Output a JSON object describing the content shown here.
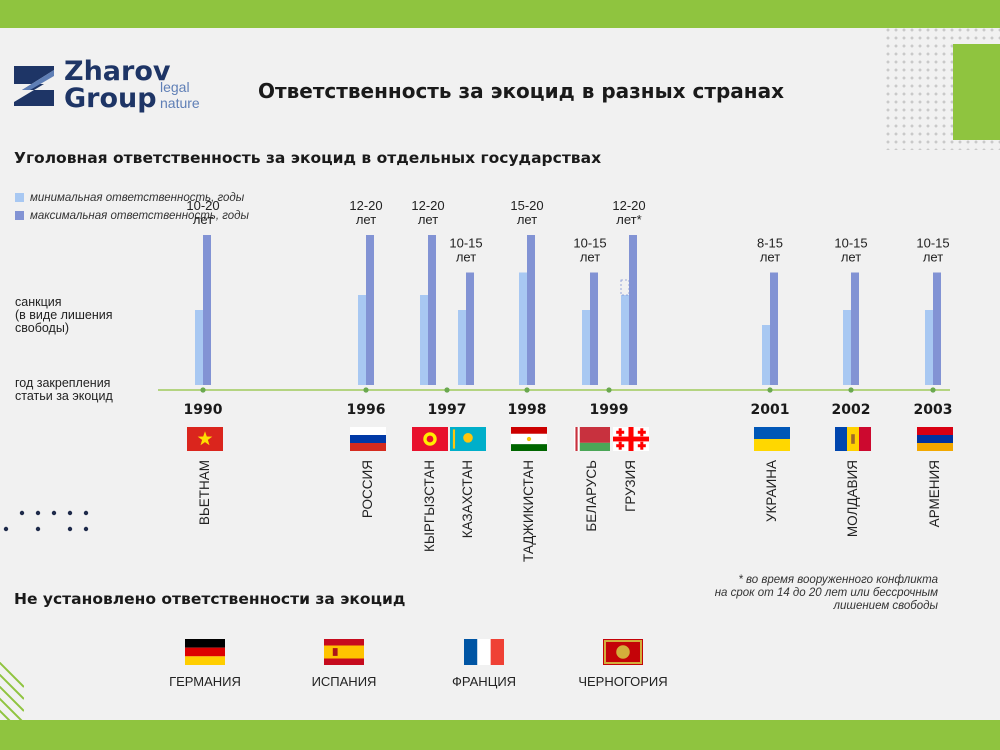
{
  "brand": {
    "line1": "Zharov",
    "line2": "Group",
    "sub1": "legal",
    "sub2": "nature"
  },
  "title": "Ответственность за экоцид в разных странах",
  "subtitle": "Уголовная ответственность за экоцид в отдельных государствах",
  "legend": {
    "min": "минимальная ответственность, годы",
    "max": "максимальная ответственность, годы"
  },
  "row_labels": {
    "sanction": [
      "санкция",
      "(в виде лишения",
      "свободы)"
    ],
    "year": [
      "год закрепления",
      "статьи за экоцид"
    ]
  },
  "colors": {
    "min": "#a8c8f2",
    "max": "#8293d4",
    "accent": "#8fc43f",
    "navy": "#1e3566",
    "timeline": "#8fc43f",
    "dot": "#6aa84f"
  },
  "chart_data": {
    "type": "bar",
    "title": "Уголовная ответственность за экоцид в отдельных государствах",
    "units": "лет",
    "ylim": [
      0,
      20
    ],
    "legend": [
      "минимальная ответственность, годы",
      "максимальная ответственность, годы"
    ],
    "countries": [
      {
        "name": "ВЬЕТНАМ",
        "year": "1990",
        "range": "10-20",
        "unit": "лет",
        "min": 10,
        "max": 20,
        "flag": "vn"
      },
      {
        "name": "РОССИЯ",
        "year": "1996",
        "range": "12-20",
        "unit": "лет",
        "min": 12,
        "max": 20,
        "flag": "ru"
      },
      {
        "name": "КЫРГЫЗСТАН",
        "year": "1997",
        "range": "12-20",
        "unit": "лет",
        "min": 12,
        "max": 20,
        "flag": "kg"
      },
      {
        "name": "КАЗАХСТАН",
        "year": "",
        "range": "10-15",
        "unit": "лет",
        "min": 10,
        "max": 15,
        "flag": "kz"
      },
      {
        "name": "ТАДЖИКИСТАН",
        "year": "1998",
        "range": "15-20",
        "unit": "лет",
        "min": 15,
        "max": 20,
        "flag": "tj"
      },
      {
        "name": "БЕЛАРУСЬ",
        "year": "1999",
        "range": "10-15",
        "unit": "лет",
        "min": 10,
        "max": 15,
        "flag": "by"
      },
      {
        "name": "ГРУЗИЯ",
        "year": "",
        "range": "12-20",
        "unit": "лет*",
        "min": 12,
        "max": 20,
        "flag": "ge"
      },
      {
        "name": "УКРАИНА",
        "year": "2001",
        "range": "8-15",
        "unit": "лет",
        "min": 8,
        "max": 15,
        "flag": "ua"
      },
      {
        "name": "МОЛДАВИЯ",
        "year": "2002",
        "range": "10-15",
        "unit": "лет",
        "min": 10,
        "max": 15,
        "flag": "md"
      },
      {
        "name": "АРМЕНИЯ",
        "year": "2003",
        "range": "10-15",
        "unit": "лет",
        "min": 10,
        "max": 15,
        "flag": "am"
      }
    ]
  },
  "footnote": [
    "* во время вооруженного конфликта",
    "на срок от 14 до 20 лет или бессрочным",
    "лишением свободы"
  ],
  "none": {
    "title": "Не установлено ответственности за экоцид",
    "countries": [
      {
        "name": "ГЕРМАНИЯ",
        "flag": "de"
      },
      {
        "name": "ИСПАНИЯ",
        "flag": "es"
      },
      {
        "name": "ФРАНЦИЯ",
        "flag": "fr"
      },
      {
        "name": "ЧЕРНОГОРИЯ",
        "flag": "me"
      }
    ]
  }
}
